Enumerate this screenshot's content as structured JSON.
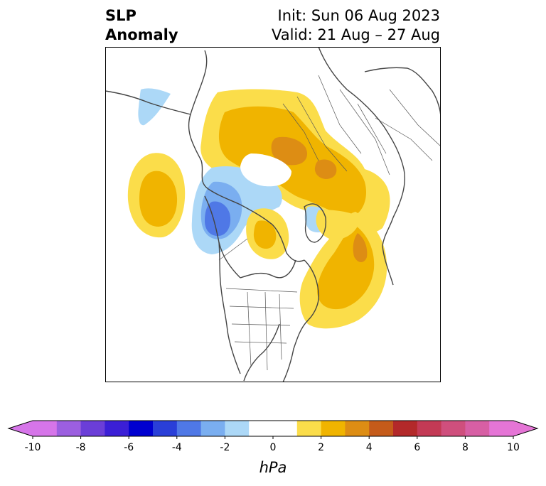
{
  "title": {
    "left_line1": "SLP",
    "left_line2": "Anomaly",
    "right_line1": "Init: Sun 06 Aug 2023",
    "right_line2": "Valid: 21 Aug – 27 Aug"
  },
  "colorbar": {
    "unit": "hPa",
    "ticks": [
      "-10",
      "-8",
      "-6",
      "-4",
      "-2",
      "0",
      "2",
      "4",
      "6",
      "8",
      "10"
    ],
    "boundaries": [
      -10,
      -9,
      -8,
      -7,
      -6,
      -5,
      -4,
      -3,
      -2,
      -1,
      1,
      2,
      3,
      4,
      5,
      6,
      7,
      8,
      9,
      10
    ],
    "colors": [
      "#d675e9",
      "#9c5fe0",
      "#6b3ed8",
      "#3b1fd6",
      "#0000d0",
      "#2a3fd8",
      "#4f78e6",
      "#7aaef0",
      "#acd8f7",
      "#ffffff",
      "#fbdd4a",
      "#f0b400",
      "#dd8d14",
      "#c55b1a",
      "#b3292a",
      "#c33a55",
      "#cf4f7d",
      "#d75fa4",
      "#e575d6"
    ],
    "under_color": "#d675e9",
    "over_color": "#e575d6"
  },
  "map": {
    "projection": "north-polar-stereographic",
    "anomalies": [
      {
        "name": "central-asia-high",
        "value": 2.5
      },
      {
        "name": "north-pacific-high",
        "value": 2
      },
      {
        "name": "alaska-low",
        "value": -3.5
      },
      {
        "name": "beaufort-high",
        "value": 2.5
      },
      {
        "name": "greenland-low",
        "value": -1.5
      },
      {
        "name": "north-atlantic-high",
        "value": 3
      },
      {
        "name": "siberia-low",
        "value": -1.5
      }
    ]
  }
}
